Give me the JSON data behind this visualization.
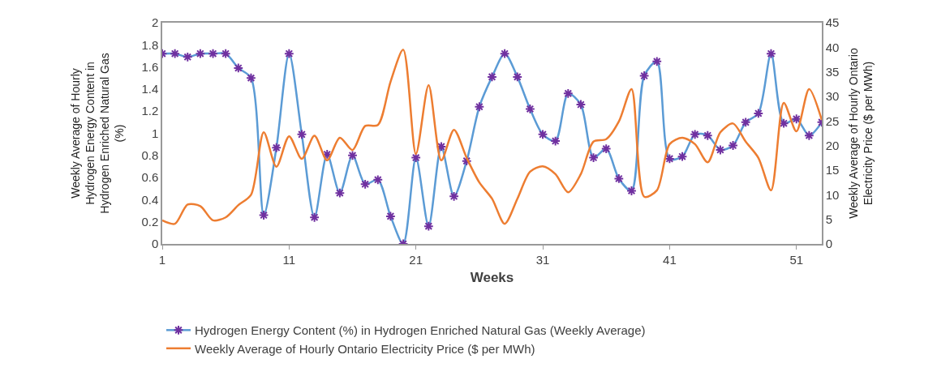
{
  "chart_data": {
    "type": "line",
    "xlabel": "Weeks",
    "ylabel": "Weekly Average of Hourly Hydrogen Energy Content in Hydrogen Enriched Natural Gas (%)",
    "y2label": "Weekly Average of Hourly Ontario Electricity Price ($ per MWh)",
    "x": [
      1,
      2,
      3,
      4,
      5,
      6,
      7,
      8,
      9,
      10,
      11,
      12,
      13,
      14,
      15,
      16,
      17,
      18,
      19,
      20,
      21,
      22,
      23,
      24,
      25,
      26,
      27,
      28,
      29,
      30,
      31,
      32,
      33,
      34,
      35,
      36,
      37,
      38,
      39,
      40,
      41,
      42,
      43,
      44,
      45,
      46,
      47,
      48,
      49,
      50,
      51,
      52,
      53
    ],
    "series": [
      {
        "name": "Hydrogen Energy Content (%) in Hydrogen Enriched Natural Gas (Weekly Average)",
        "color": "#5b9bd5",
        "marker": "cross",
        "values": [
          1.72,
          1.72,
          1.69,
          1.72,
          1.72,
          1.72,
          1.59,
          1.5,
          0.26,
          0.87,
          1.72,
          0.99,
          0.24,
          0.81,
          0.46,
          0.8,
          0.54,
          0.58,
          0.25,
          0.0,
          0.78,
          0.16,
          0.88,
          0.43,
          0.75,
          1.24,
          1.51,
          1.72,
          1.51,
          1.22,
          0.99,
          0.93,
          1.36,
          1.26,
          0.78,
          0.86,
          0.59,
          0.48,
          1.52,
          1.65,
          0.77,
          0.79,
          0.99,
          0.98,
          0.85,
          0.89,
          1.1,
          1.18,
          1.72,
          1.09,
          1.13,
          0.98,
          1.1
        ]
      },
      {
        "name": "Weekly Average of Hourly Ontario Electricity Price ($ per MWh)",
        "color": "#ed7d31",
        "axis": "y2",
        "marker": "none",
        "values": [
          4.8,
          4.1,
          8.0,
          7.7,
          4.8,
          5.4,
          7.9,
          10,
          22.7,
          15.7,
          21.9,
          17.3,
          22,
          17,
          21.6,
          19.1,
          24,
          24.2,
          33,
          39.5,
          18.3,
          32.3,
          17,
          23.2,
          17.5,
          12.5,
          9.2,
          4.1,
          9.2,
          14.7,
          15.8,
          14.2,
          10.5,
          14.2,
          20.8,
          21.3,
          24.9,
          31.5,
          9.6,
          10.9,
          20.3,
          21.6,
          20.3,
          16.6,
          22.7,
          24.5,
          20.8,
          17.5,
          10.9,
          28.7,
          22.9,
          31.5,
          25.2
        ]
      }
    ],
    "xlim": [
      1,
      53
    ],
    "xticks": [
      1,
      11,
      21,
      31,
      41,
      51
    ],
    "ylim": [
      0,
      2
    ],
    "yticks": [
      0,
      0.2,
      0.4,
      0.6,
      0.8,
      1,
      1.2,
      1.4,
      1.6,
      1.8,
      2
    ],
    "y2lim": [
      0,
      45
    ],
    "y2ticks": [
      0,
      5,
      10,
      15,
      20,
      25,
      30,
      35,
      40,
      45
    ],
    "line_style": "solid",
    "legend": "bottom"
  }
}
